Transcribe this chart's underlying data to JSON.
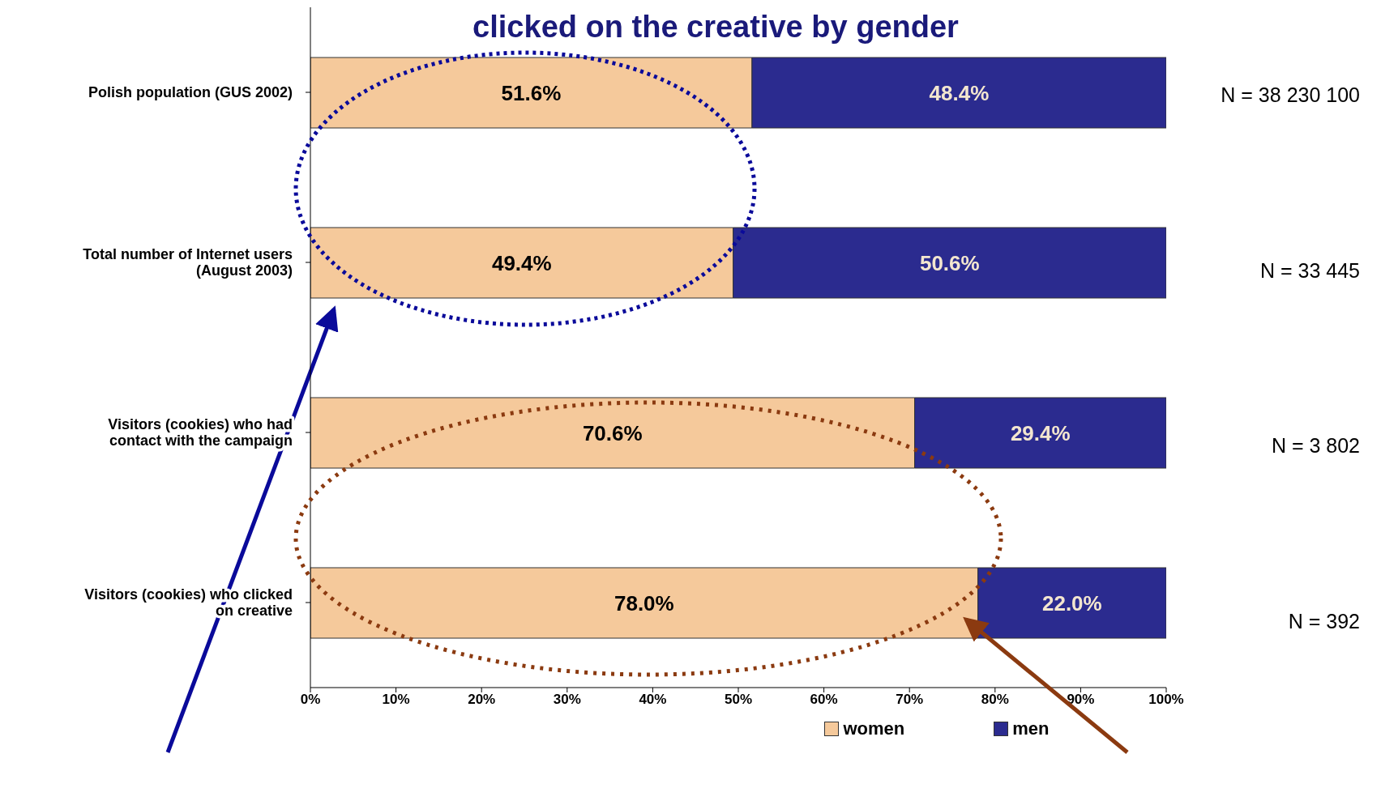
{
  "chart_data": {
    "type": "bar",
    "orientation": "horizontal",
    "stacked": true,
    "title": "clicked on the creative by gender",
    "categories": [
      "Polish population (GUS 2002)",
      "Total number of Internet users (August 2003)",
      "Visitors (cookies) who had contact with the campaign",
      "Visitors (cookies) who clicked on creative"
    ],
    "series": [
      {
        "name": "women",
        "color": "#f5c99b",
        "values": [
          51.6,
          49.4,
          70.6,
          78.0
        ],
        "value_labels": [
          "51.6%",
          "49.4%",
          "70.6%",
          "78.0%"
        ]
      },
      {
        "name": "men",
        "color": "#2b2b8f",
        "values": [
          48.4,
          50.6,
          29.4,
          22.0
        ],
        "value_labels": [
          "48.4%",
          "50.6%",
          "29.4%",
          "22.0%"
        ]
      }
    ],
    "xlim": [
      0,
      100
    ],
    "xticks": [
      {
        "value": 0,
        "label": "0%"
      },
      {
        "value": 10,
        "label": "10%"
      },
      {
        "value": 20,
        "label": "20%"
      },
      {
        "value": 30,
        "label": "30%"
      },
      {
        "value": 40,
        "label": "40%"
      },
      {
        "value": 50,
        "label": "50%"
      },
      {
        "value": 60,
        "label": "60%"
      },
      {
        "value": 70,
        "label": "70%"
      },
      {
        "value": 80,
        "label": "80%"
      },
      {
        "value": 90,
        "label": "90%"
      },
      {
        "value": 100,
        "label": "100%"
      }
    ],
    "annotations": [
      "N = 38 230 100",
      "N = 33 445",
      "N = 3 802",
      "N = 392"
    ],
    "legend": "bottom",
    "grid": false
  }
}
